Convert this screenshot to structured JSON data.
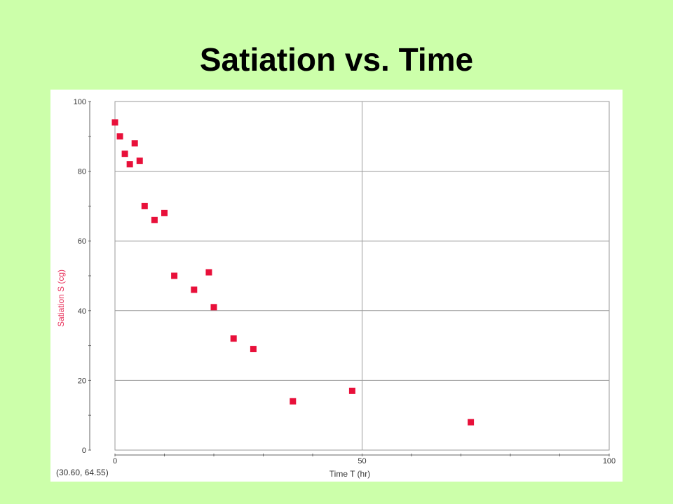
{
  "slide": {
    "title": "Satiation vs. Time"
  },
  "coordinate_readout": "(30.60, 64.55)",
  "colors": {
    "background": "#ccffaa",
    "marker": "#e8103a",
    "ylabel": "#e8305a",
    "grid": "#9a9a9a"
  },
  "chart_data": {
    "type": "scatter",
    "title": "",
    "xlabel": "Time T (hr)",
    "ylabel": "Satiation S (cg)",
    "xlim": [
      0,
      100
    ],
    "ylim": [
      0,
      100
    ],
    "xticks": [
      0,
      50,
      100
    ],
    "yticks": [
      0,
      20,
      40,
      60,
      80,
      100
    ],
    "x_minor_step": 10,
    "y_minor_step": 10,
    "grid": true,
    "legend": "none",
    "points": [
      {
        "x": 0,
        "y": 94
      },
      {
        "x": 1,
        "y": 90
      },
      {
        "x": 2,
        "y": 85
      },
      {
        "x": 3,
        "y": 82
      },
      {
        "x": 4,
        "y": 88
      },
      {
        "x": 5,
        "y": 83
      },
      {
        "x": 6,
        "y": 70
      },
      {
        "x": 8,
        "y": 66
      },
      {
        "x": 10,
        "y": 68
      },
      {
        "x": 12,
        "y": 50
      },
      {
        "x": 16,
        "y": 46
      },
      {
        "x": 19,
        "y": 51
      },
      {
        "x": 20,
        "y": 41
      },
      {
        "x": 24,
        "y": 32
      },
      {
        "x": 28,
        "y": 29
      },
      {
        "x": 36,
        "y": 14
      },
      {
        "x": 48,
        "y": 17
      },
      {
        "x": 72,
        "y": 8
      }
    ]
  }
}
